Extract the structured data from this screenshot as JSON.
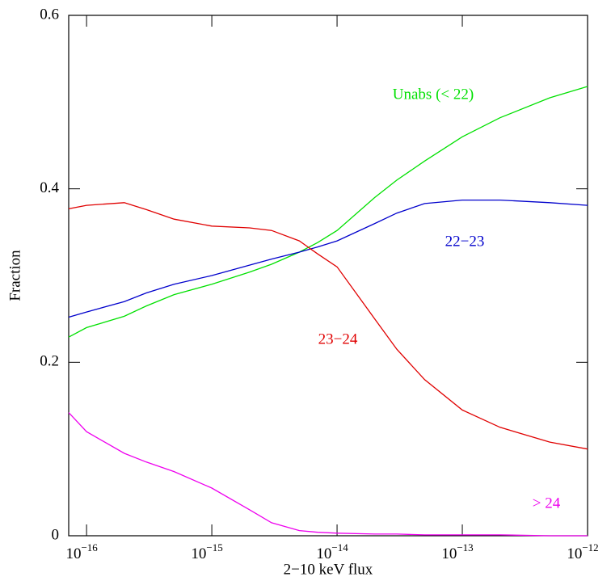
{
  "chart_data": {
    "type": "line",
    "xlabel": "2−10 keV flux",
    "ylabel": "Fraction",
    "xscale": "log",
    "xlim": [
      7.2e-17,
      1e-12
    ],
    "ylim": [
      0,
      0.6
    ],
    "xticks": [
      {
        "value": 1e-16,
        "label": "10",
        "exponent": "−16"
      },
      {
        "value": 1e-15,
        "label": "10",
        "exponent": "−15"
      },
      {
        "value": 1e-14,
        "label": "10",
        "exponent": "−14"
      },
      {
        "value": 1e-13,
        "label": "10",
        "exponent": "−13"
      },
      {
        "value": 1e-12,
        "label": "10",
        "exponent": "−12"
      }
    ],
    "yticks": [
      0,
      0.2,
      0.4,
      0.6
    ],
    "x": [
      7.2e-17,
      1e-16,
      2e-16,
      3e-16,
      5e-16,
      1e-15,
      2e-15,
      3e-15,
      5e-15,
      7e-15,
      1e-14,
      2e-14,
      3e-14,
      5e-14,
      1e-13,
      2e-13,
      5e-13,
      1e-12
    ],
    "series": [
      {
        "name": "Unabs (< 22)",
        "color": "#00e000",
        "values": [
          0.229,
          0.24,
          0.253,
          0.265,
          0.278,
          0.29,
          0.304,
          0.313,
          0.327,
          0.338,
          0.352,
          0.39,
          0.41,
          0.432,
          0.46,
          0.482,
          0.505,
          0.518
        ]
      },
      {
        "name": "22−23",
        "color": "#0000cc",
        "values": [
          0.252,
          0.258,
          0.27,
          0.28,
          0.29,
          0.3,
          0.312,
          0.319,
          0.327,
          0.333,
          0.34,
          0.36,
          0.372,
          0.383,
          0.387,
          0.387,
          0.384,
          0.381
        ]
      },
      {
        "name": "23−24",
        "color": "#e00000",
        "values": [
          0.377,
          0.381,
          0.384,
          0.376,
          0.365,
          0.357,
          0.355,
          0.352,
          0.34,
          0.325,
          0.31,
          0.25,
          0.215,
          0.18,
          0.145,
          0.125,
          0.108,
          0.1
        ]
      },
      {
        "name": "> 24",
        "color": "#ee00ee",
        "values": [
          0.142,
          0.12,
          0.095,
          0.085,
          0.074,
          0.055,
          0.03,
          0.015,
          0.006,
          0.004,
          0.003,
          0.002,
          0.002,
          0.001,
          0.001,
          0.001,
          0.0,
          0.0
        ]
      }
    ]
  }
}
